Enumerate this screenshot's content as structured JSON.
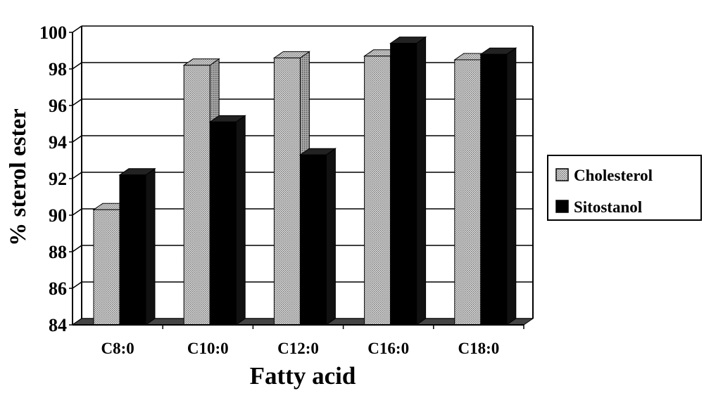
{
  "chart_data": {
    "type": "bar",
    "title": "",
    "xlabel": "Fatty acid",
    "ylabel": "% sterol ester",
    "categories": [
      "C8:0",
      "C10:0",
      "C12:0",
      "C16:0",
      "C18:0"
    ],
    "series": [
      {
        "name": "Cholesterol",
        "values": [
          90.3,
          98.2,
          98.6,
          98.7,
          98.5
        ],
        "color": "#b8b8b8"
      },
      {
        "name": "Sitostanol",
        "values": [
          92.2,
          95.1,
          93.3,
          99.4,
          98.8
        ],
        "color": "#000000"
      }
    ],
    "ylim": [
      84,
      100
    ],
    "yticks": [
      "84",
      "86",
      "88",
      "90",
      "92",
      "94",
      "96",
      "98",
      "100"
    ],
    "grid": true,
    "legend_position": "right",
    "style": "3d"
  }
}
